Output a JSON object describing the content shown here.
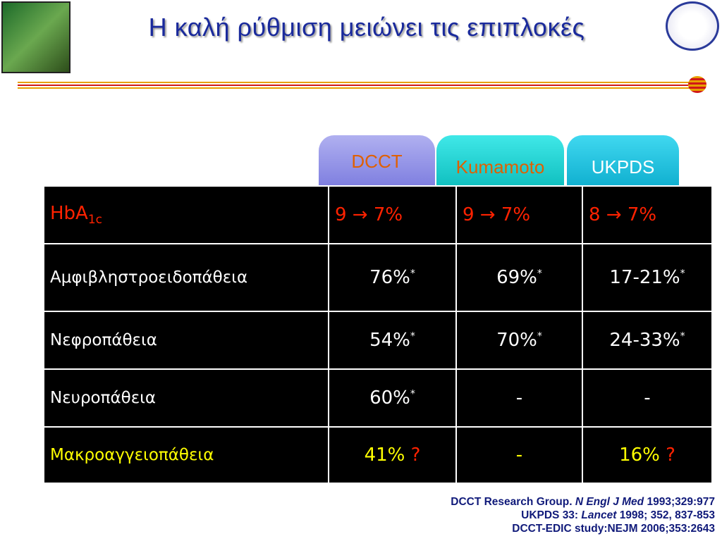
{
  "header": {
    "title": "Η καλή ρύθμιση μειώνει τις επιπλοκές"
  },
  "table": {
    "columns": [
      "DCCT",
      "Kumamoto",
      "UKPDS"
    ],
    "rows": [
      {
        "label": {
          "text": "HbA",
          "sub": "1c"
        },
        "cells": [
          {
            "text": "9 → 7%"
          },
          {
            "text": "9 → 7%"
          },
          {
            "text": "8 → 7%"
          }
        ]
      },
      {
        "label": {
          "text": "Αμφιβληστροειδοπάθεια"
        },
        "cells": [
          {
            "text": "76%",
            "sup": "*"
          },
          {
            "text": "69%",
            "sup": "*"
          },
          {
            "text": "17-21%",
            "sup": "*"
          }
        ]
      },
      {
        "label": {
          "text": "Νεφροπάθεια"
        },
        "cells": [
          {
            "text": "54%",
            "sup": "*"
          },
          {
            "text": "70%",
            "sup": "*"
          },
          {
            "text": "24-33%",
            "sup": "*"
          }
        ]
      },
      {
        "label": {
          "text": "Νευροπάθεια"
        },
        "cells": [
          {
            "text": "60%",
            "sup": "*"
          },
          {
            "text": "-"
          },
          {
            "text": "-"
          }
        ]
      },
      {
        "label": {
          "text": "Μακροαγγειοπάθεια"
        },
        "cells": [
          {
            "text": "41%",
            "query": "?"
          },
          {
            "text": "-"
          },
          {
            "text": "16%",
            "query": "?"
          }
        ]
      }
    ]
  },
  "references": [
    [
      "DCCT Research Group.",
      "N Engl J Med",
      "1993;329:977"
    ],
    [
      "UKPDS 33:",
      "Lancet",
      "1998; 352, 837-853"
    ],
    [
      "DCCT-EDIC study:NEJM 2006;353:2643"
    ]
  ]
}
